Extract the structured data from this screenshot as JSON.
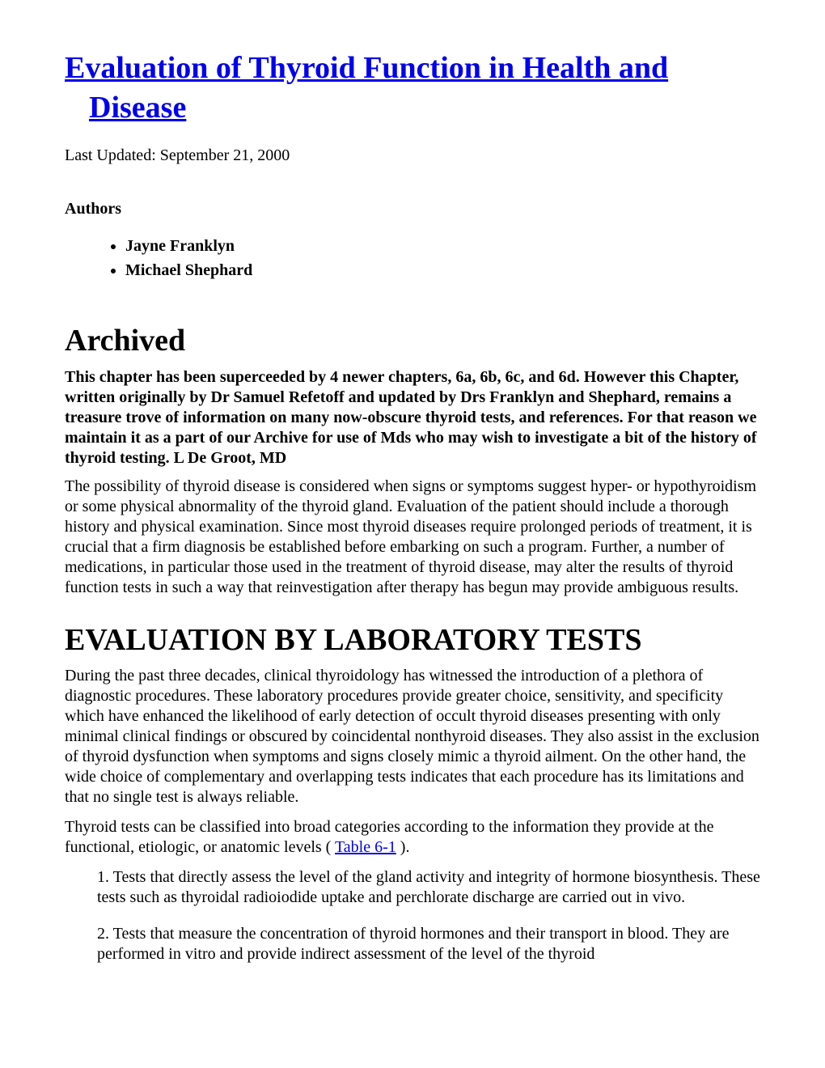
{
  "title": "Evaluation of Thyroid Function in Health and Disease",
  "lastUpdated": "Last Updated: September 21, 2000",
  "authorsHeading": "Authors",
  "authors": [
    "Jayne Franklyn",
    "Michael Shephard"
  ],
  "archivedHeading": "Archived",
  "archiveNote": "This chapter has been superceeded by 4 newer chapters, 6a, 6b, 6c, and 6d. However this Chapter, written originally by Dr Samuel Refetoff and updated by Drs Franklyn and Shephard, remains a treasure trove of information on many now-obscure thyroid tests, and references. For that reason we maintain it as a part of our Archive for use of Mds who may wish to investigate a bit of the history of thyroid testing. L De Groot, MD",
  "introParagraph": "The possibility of thyroid disease is considered when signs or symptoms suggest hyper- or hypothyroidism or some physical abnormality of the thyroid gland. Evaluation of the patient should include a thorough history and physical examination. Since most thyroid diseases require prolonged periods of treatment, it is crucial that a firm diagnosis be established before embarking on such a program. Further, a number of medications, in particular those used in the treatment of thyroid disease, may alter the results of thyroid function tests in such a way that reinvestigation after therapy has begun may provide ambiguous results.",
  "sectionHeading": "EVALUATION BY LABORATORY TESTS",
  "labParagraph1": "During the past three decades, clinical thyroidology has witnessed the introduction of a plethora of diagnostic procedures. These laboratory procedures provide greater choice, sensitivity, and specificity which have enhanced the likelihood of early detection of occult thyroid diseases presenting with only minimal clinical findings or obscured by coincidental nonthyroid diseases. They also assist in the exclusion of thyroid dysfunction when symptoms and signs closely mimic a thyroid ailment. On the other hand, the wide choice of complementary and overlapping tests indicates that each procedure has its limitations and that no single test is always reliable.",
  "labParagraph2Before": "Thyroid tests can be classified into broad categories according to the information they provide at the functional, etiologic, or anatomic levels ( ",
  "tableLinkText": "Table 6-1",
  "labParagraph2After": " ).",
  "numberedItems": [
    "1. Tests that directly assess the level of the gland activity and integrity of hormone biosynthesis. These tests such as thyroidal radioiodide uptake and perchlorate discharge are carried out in vivo.",
    "2. Tests that measure the concentration of thyroid hormones and their transport in blood. They are performed in vitro and provide indirect assessment of the level of the thyroid"
  ],
  "colors": {
    "linkColor": "#0000ee",
    "textColor": "#000000",
    "backgroundColor": "#ffffff"
  },
  "typography": {
    "fontFamily": "Times New Roman",
    "bodyFontSize": 20,
    "titleFontSize": 38,
    "headingFontSize": 38
  }
}
